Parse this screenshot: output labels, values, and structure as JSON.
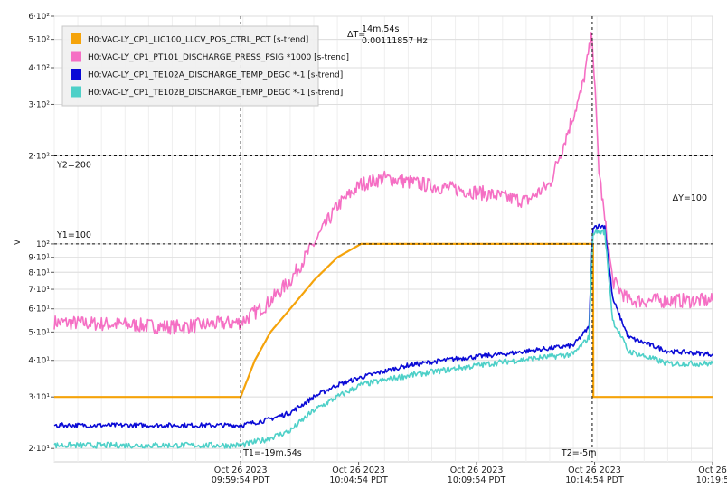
{
  "chart_data": {
    "type": "line",
    "ylabel": "V",
    "y_scale": "log",
    "ylim": [
      18,
      600
    ],
    "x_range": [
      "2023-10-26T09:52:00-07:00",
      "2023-10-26T10:19:54-07:00"
    ],
    "y_ticks": [
      {
        "value": 20,
        "label": "2·10¹"
      },
      {
        "value": 30,
        "label": "3·10¹"
      },
      {
        "value": 40,
        "label": "4·10¹"
      },
      {
        "value": 50,
        "label": "5·10¹"
      },
      {
        "value": 60,
        "label": "6·10¹"
      },
      {
        "value": 70,
        "label": "7·10¹"
      },
      {
        "value": 80,
        "label": "8·10¹"
      },
      {
        "value": 90,
        "label": "9·10¹"
      },
      {
        "value": 100,
        "label": "10²"
      },
      {
        "value": 200,
        "label": "2·10²"
      },
      {
        "value": 300,
        "label": "3·10²"
      },
      {
        "value": 400,
        "label": "4·10²"
      },
      {
        "value": 500,
        "label": "5·10²"
      },
      {
        "value": 600,
        "label": "6·10²"
      }
    ],
    "x_ticks": [
      {
        "t": "2023-10-26T09:59:54-07:00",
        "line1": "Oct 26 2023",
        "line2": "09:59:54 PDT"
      },
      {
        "t": "2023-10-26T10:04:54-07:00",
        "line1": "Oct 26 2023",
        "line2": "10:04:54 PDT"
      },
      {
        "t": "2023-10-26T10:09:54-07:00",
        "line1": "Oct 26 2023",
        "line2": "10:09:54 PDT"
      },
      {
        "t": "2023-10-26T10:14:54-07:00",
        "line1": "Oct 26 2023",
        "line2": "10:14:54 PDT"
      },
      {
        "t": "2023-10-26T10:19:54-07:00",
        "line1": "Oct 26",
        "line2": "10:19:5"
      }
    ],
    "cursors": {
      "T1": {
        "t": "2023-10-26T09:59:54-07:00",
        "label": "T1=-19m,54s"
      },
      "T2": {
        "t": "2023-10-26T10:14:48-07:00",
        "label": "T2=-5m"
      },
      "Y1": {
        "value": 100,
        "label": "Y1=100"
      },
      "Y2": {
        "value": 200,
        "label": "Y2=200"
      },
      "delta_t": {
        "label": "ΔT=",
        "value": "14m,54s",
        "freq": "0.00111857 Hz"
      },
      "delta_y": {
        "label": "ΔY=100"
      }
    },
    "series": [
      {
        "name": "H0:VAC-LY_CP1_LIC100_LLCV_POS_CTRL_PCT [s-trend]",
        "color": "#f5a30a",
        "noise": 0,
        "points": [
          [
            "2023-10-26T09:52:00-07:00",
            30
          ],
          [
            "2023-10-26T09:59:54-07:00",
            30
          ],
          [
            "2023-10-26T10:00:30-07:00",
            40
          ],
          [
            "2023-10-26T10:01:10-07:00",
            50
          ],
          [
            "2023-10-26T10:02:00-07:00",
            60
          ],
          [
            "2023-10-26T10:03:00-07:00",
            75
          ],
          [
            "2023-10-26T10:04:00-07:00",
            90
          ],
          [
            "2023-10-26T10:05:00-07:00",
            100
          ],
          [
            "2023-10-26T10:14:50-07:00",
            100
          ],
          [
            "2023-10-26T10:14:51-07:00",
            30
          ],
          [
            "2023-10-26T10:19:54-07:00",
            30
          ]
        ]
      },
      {
        "name": "H0:VAC-LY_CP1_PT101_DISCHARGE_PRESS_PSIG *1000 [s-trend]",
        "color": "#f56fc4",
        "noise": 0.025,
        "points": [
          [
            "2023-10-26T09:52:00-07:00",
            54
          ],
          [
            "2023-10-26T09:55:00-07:00",
            53
          ],
          [
            "2023-10-26T09:57:00-07:00",
            52
          ],
          [
            "2023-10-26T09:59:54-07:00",
            54
          ],
          [
            "2023-10-26T10:01:00-07:00",
            62
          ],
          [
            "2023-10-26T10:02:00-07:00",
            75
          ],
          [
            "2023-10-26T10:03:00-07:00",
            100
          ],
          [
            "2023-10-26T10:04:00-07:00",
            135
          ],
          [
            "2023-10-26T10:05:00-07:00",
            160
          ],
          [
            "2023-10-26T10:06:00-07:00",
            168
          ],
          [
            "2023-10-26T10:08:00-07:00",
            158
          ],
          [
            "2023-10-26T10:10:00-07:00",
            150
          ],
          [
            "2023-10-26T10:12:00-07:00",
            140
          ],
          [
            "2023-10-26T10:13:00-07:00",
            160
          ],
          [
            "2023-10-26T10:13:45-07:00",
            240
          ],
          [
            "2023-10-26T10:14:20-07:00",
            330
          ],
          [
            "2023-10-26T10:14:48-07:00",
            520
          ],
          [
            "2023-10-26T10:15:05-07:00",
            180
          ],
          [
            "2023-10-26T10:15:20-07:00",
            120
          ],
          [
            "2023-10-26T10:15:40-07:00",
            75
          ],
          [
            "2023-10-26T10:16:20-07:00",
            64
          ],
          [
            "2023-10-26T10:19:54-07:00",
            64
          ]
        ]
      },
      {
        "name": "H0:VAC-LY_CP1_TE102A_DISCHARGE_TEMP_DEGC *-1 [s-trend]",
        "color": "#0a0ad6",
        "noise": 0.008,
        "points": [
          [
            "2023-10-26T09:52:00-07:00",
            24
          ],
          [
            "2023-10-26T09:59:54-07:00",
            24
          ],
          [
            "2023-10-26T10:01:00-07:00",
            25
          ],
          [
            "2023-10-26T10:02:00-07:00",
            26.5
          ],
          [
            "2023-10-26T10:03:00-07:00",
            30
          ],
          [
            "2023-10-26T10:04:00-07:00",
            33
          ],
          [
            "2023-10-26T10:05:00-07:00",
            35
          ],
          [
            "2023-10-26T10:07:00-07:00",
            38.5
          ],
          [
            "2023-10-26T10:09:00-07:00",
            40.5
          ],
          [
            "2023-10-26T10:11:00-07:00",
            42
          ],
          [
            "2023-10-26T10:14:00-07:00",
            45
          ],
          [
            "2023-10-26T10:14:40-07:00",
            52
          ],
          [
            "2023-10-26T10:14:50-07:00",
            115
          ],
          [
            "2023-10-26T10:15:20-07:00",
            115
          ],
          [
            "2023-10-26T10:15:40-07:00",
            65
          ],
          [
            "2023-10-26T10:16:20-07:00",
            48
          ],
          [
            "2023-10-26T10:18:00-07:00",
            43
          ],
          [
            "2023-10-26T10:19:54-07:00",
            42
          ]
        ]
      },
      {
        "name": "H0:VAC-LY_CP1_TE102B_DISCHARGE_TEMP_DEGC *-1 [s-trend]",
        "color": "#4ed0c8",
        "noise": 0.01,
        "points": [
          [
            "2023-10-26T09:52:00-07:00",
            20.5
          ],
          [
            "2023-10-26T09:59:54-07:00",
            20.5
          ],
          [
            "2023-10-26T10:01:00-07:00",
            21.5
          ],
          [
            "2023-10-26T10:02:00-07:00",
            23
          ],
          [
            "2023-10-26T10:03:00-07:00",
            27
          ],
          [
            "2023-10-26T10:04:00-07:00",
            30
          ],
          [
            "2023-10-26T10:05:00-07:00",
            33
          ],
          [
            "2023-10-26T10:07:00-07:00",
            35.5
          ],
          [
            "2023-10-26T10:09:00-07:00",
            37.5
          ],
          [
            "2023-10-26T10:11:00-07:00",
            39.5
          ],
          [
            "2023-10-26T10:14:00-07:00",
            42
          ],
          [
            "2023-10-26T10:14:40-07:00",
            48
          ],
          [
            "2023-10-26T10:14:50-07:00",
            110
          ],
          [
            "2023-10-26T10:15:20-07:00",
            110
          ],
          [
            "2023-10-26T10:15:40-07:00",
            55
          ],
          [
            "2023-10-26T10:16:20-07:00",
            43
          ],
          [
            "2023-10-26T10:18:00-07:00",
            39
          ],
          [
            "2023-10-26T10:19:54-07:00",
            39
          ]
        ]
      }
    ],
    "legend": {
      "placement": "top-left"
    }
  }
}
